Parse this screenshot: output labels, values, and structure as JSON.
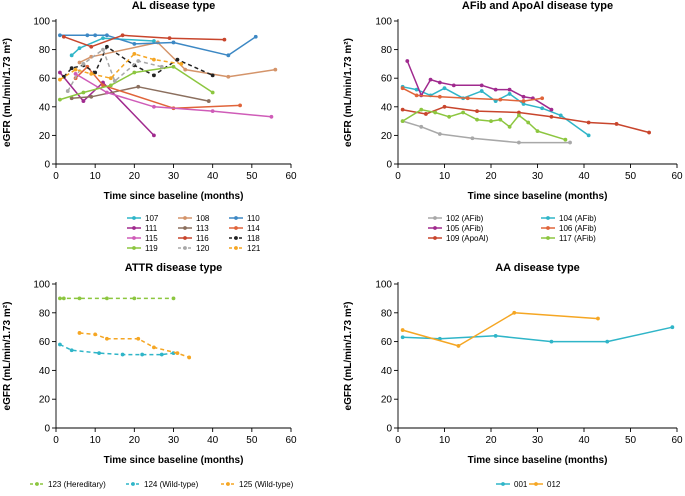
{
  "chart_data": [
    {
      "type": "line",
      "title": "AL disease type",
      "xlabel": "Time since baseline (months)",
      "ylabel": "eGFR (mL/min/1.73 m²)",
      "xlim": [
        0,
        60
      ],
      "ylim": [
        0,
        100
      ],
      "xticks": [
        0,
        10,
        20,
        30,
        40,
        50,
        60
      ],
      "yticks": [
        0,
        20,
        40,
        60,
        80,
        100
      ],
      "series": [
        {
          "name": "107",
          "color": "#2fb5c8",
          "dashed": false,
          "x": [
            4,
            6,
            12,
            25
          ],
          "y": [
            76,
            81,
            88,
            86
          ]
        },
        {
          "name": "108",
          "color": "#d4946a",
          "dashed": false,
          "x": [
            6,
            9,
            26,
            33,
            44,
            56
          ],
          "y": [
            71,
            75,
            85,
            66,
            61,
            66
          ]
        },
        {
          "name": "110",
          "color": "#3c88c4",
          "dashed": false,
          "x": [
            1,
            8,
            10,
            13,
            20,
            30,
            44,
            51
          ],
          "y": [
            90,
            90,
            90,
            90,
            84,
            85,
            76,
            89
          ]
        },
        {
          "name": "111",
          "color": "#a02a8e",
          "dashed": false,
          "x": [
            1,
            7,
            12,
            25
          ],
          "y": [
            64,
            44,
            57,
            20
          ]
        },
        {
          "name": "113",
          "color": "#8b6f5e",
          "dashed": false,
          "x": [
            4,
            9,
            21,
            39
          ],
          "y": [
            46,
            47,
            54,
            44
          ]
        },
        {
          "name": "114",
          "color": "#e0643a",
          "dashed": false,
          "x": [
            5,
            8,
            12,
            30,
            47
          ],
          "y": [
            60,
            68,
            55,
            39,
            41
          ]
        },
        {
          "name": "115",
          "color": "#cf5cb8",
          "dashed": false,
          "x": [
            5,
            13,
            25,
            40,
            55
          ],
          "y": [
            63,
            50,
            40,
            37,
            33
          ]
        },
        {
          "name": "116",
          "color": "#c8452c",
          "dashed": false,
          "x": [
            2,
            9,
            17,
            29,
            43
          ],
          "y": [
            89,
            82,
            90,
            88,
            87
          ]
        },
        {
          "name": "118",
          "color": "#222222",
          "dashed": true,
          "x": [
            2,
            4,
            7,
            10,
            13,
            20,
            25,
            31,
            40
          ],
          "y": [
            61,
            67,
            69,
            64,
            82,
            69,
            62,
            73,
            62
          ]
        },
        {
          "name": "119",
          "color": "#8cc63f",
          "dashed": false,
          "x": [
            1,
            7,
            14,
            20,
            30,
            40
          ],
          "y": [
            45,
            50,
            55,
            64,
            68,
            50
          ]
        },
        {
          "name": "120",
          "color": "#a8a8a8",
          "dashed": true,
          "x": [
            3,
            7,
            12,
            15,
            21,
            27
          ],
          "y": [
            51,
            70,
            80,
            58,
            72,
            68
          ]
        },
        {
          "name": "121",
          "color": "#f5a623",
          "dashed": true,
          "x": [
            1,
            5,
            9,
            14,
            20,
            25,
            32
          ],
          "y": [
            59,
            66,
            63,
            60,
            77,
            73,
            70
          ]
        }
      ]
    },
    {
      "type": "line",
      "title": "AFib and ApoAl disease type",
      "xlabel": "Time since baseline (months)",
      "ylabel": "eGFR (mL/min/1.73 m²)",
      "xlim": [
        0,
        60
      ],
      "ylim": [
        0,
        100
      ],
      "xticks": [
        0,
        10,
        20,
        30,
        40,
        50,
        60
      ],
      "yticks": [
        0,
        20,
        40,
        60,
        80,
        100
      ],
      "series": [
        {
          "name": "102 (AFib)",
          "color": "#a8a8a8",
          "dashed": false,
          "x": [
            1,
            5,
            9,
            16,
            26,
            37
          ],
          "y": [
            30,
            26,
            21,
            18,
            15,
            15
          ]
        },
        {
          "name": "104 (AFib)",
          "color": "#2fb5c8",
          "dashed": false,
          "x": [
            1,
            4,
            7,
            10,
            14,
            18,
            21,
            24,
            27,
            31,
            35,
            41
          ],
          "y": [
            54,
            52,
            48,
            53,
            46,
            51,
            44,
            49,
            42,
            39,
            34,
            20
          ]
        },
        {
          "name": "105 (AFib)",
          "color": "#a02a8e",
          "dashed": false,
          "x": [
            2,
            5,
            7,
            9,
            12,
            18,
            21,
            24,
            27,
            29,
            33
          ],
          "y": [
            72,
            48,
            59,
            57,
            55,
            55,
            52,
            52,
            47,
            46,
            38
          ]
        },
        {
          "name": "106 (AFib)",
          "color": "#e0643a",
          "dashed": false,
          "x": [
            1,
            4,
            9,
            15,
            22,
            27,
            31
          ],
          "y": [
            53,
            48,
            47,
            46,
            45,
            44,
            46
          ]
        },
        {
          "name": "109 (ApoAl)",
          "color": "#c8452c",
          "dashed": false,
          "x": [
            1,
            6,
            10,
            17,
            26,
            33,
            41,
            47,
            54
          ],
          "y": [
            38,
            35,
            40,
            37,
            36,
            33,
            29,
            28,
            22
          ]
        },
        {
          "name": "117 (AFib)",
          "color": "#8cc63f",
          "dashed": false,
          "x": [
            1,
            5,
            8,
            11,
            14,
            17,
            20,
            22,
            24,
            26,
            28,
            30,
            36
          ],
          "y": [
            30,
            38,
            36,
            33,
            36,
            31,
            30,
            31,
            26,
            34,
            29,
            23,
            17
          ]
        }
      ]
    },
    {
      "type": "line",
      "title": "ATTR disease type",
      "xlabel": "Time since baseline (months)",
      "ylabel": "eGFR (mL/min/1.73 m²)",
      "xlim": [
        0,
        60
      ],
      "ylim": [
        0,
        100
      ],
      "xticks": [
        0,
        10,
        20,
        30,
        40,
        50,
        60
      ],
      "yticks": [
        0,
        20,
        40,
        60,
        80,
        100
      ],
      "series": [
        {
          "name": "123 (Hereditary)",
          "color": "#8cc63f",
          "dashed": true,
          "x": [
            1,
            2,
            6,
            13,
            20,
            30
          ],
          "y": [
            90,
            90,
            90,
            90,
            90,
            90
          ]
        },
        {
          "name": "124 (Wild-type)",
          "color": "#2fb5c8",
          "dashed": true,
          "x": [
            1,
            4,
            11,
            17,
            22,
            27,
            30
          ],
          "y": [
            58,
            54,
            52,
            51,
            51,
            51,
            52
          ]
        },
        {
          "name": "125 (Wild-type)",
          "color": "#f5a623",
          "dashed": true,
          "x": [
            6,
            10,
            13,
            21,
            25,
            31,
            34
          ],
          "y": [
            66,
            65,
            62,
            62,
            56,
            52,
            49
          ]
        }
      ]
    },
    {
      "type": "line",
      "title": "AA disease type",
      "xlabel": "Time since baseline (months)",
      "ylabel": "eGFR (mL/min/1.73 m²)",
      "xlim": [
        0,
        60
      ],
      "ylim": [
        0,
        100
      ],
      "xticks": [
        0,
        10,
        20,
        30,
        40,
        50,
        60
      ],
      "yticks": [
        0,
        20,
        40,
        60,
        80,
        100
      ],
      "series": [
        {
          "name": "001",
          "color": "#2fb5c8",
          "dashed": false,
          "x": [
            1,
            9,
            21,
            33,
            45,
            59
          ],
          "y": [
            63,
            62,
            64,
            60,
            60,
            70
          ]
        },
        {
          "name": "012",
          "color": "#f5a623",
          "dashed": false,
          "x": [
            1,
            13,
            25,
            43
          ],
          "y": [
            68,
            57,
            80,
            76
          ]
        }
      ]
    }
  ]
}
